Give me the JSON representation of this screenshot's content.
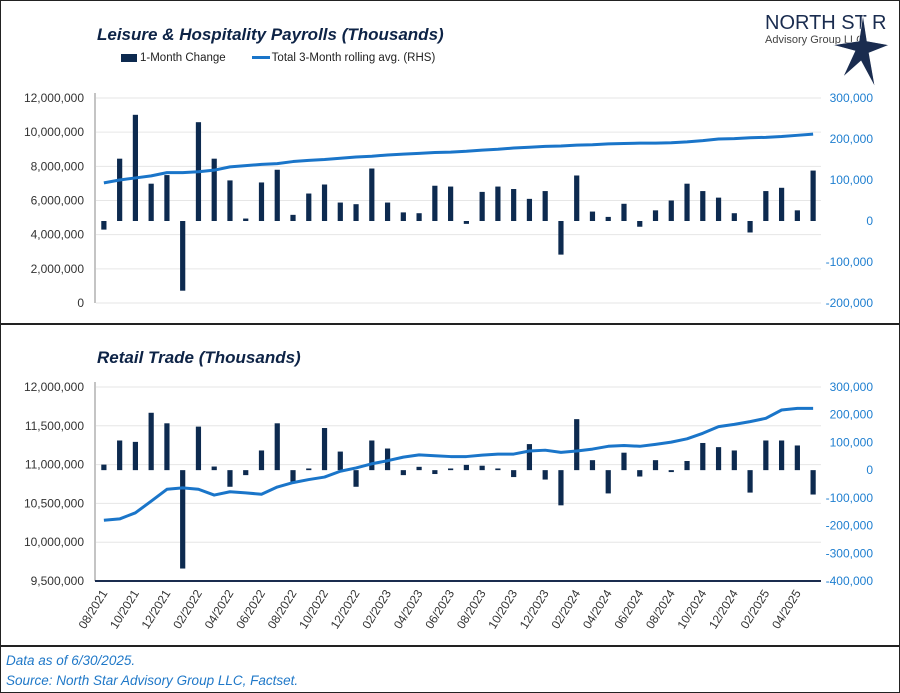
{
  "logo": {
    "line1": "NORTH STAR",
    "line2": "Advisory Group",
    "line3": "LLC"
  },
  "colors": {
    "bar": "#0d2a4f",
    "line": "#1a75c9",
    "rhs_text": "#1f7fd0",
    "grid": "#e6e6e6"
  },
  "x_labels": [
    "08/2021",
    "10/2021",
    "12/2021",
    "02/2022",
    "04/2022",
    "06/2022",
    "08/2022",
    "10/2022",
    "12/2022",
    "02/2023",
    "04/2023",
    "06/2023",
    "08/2023",
    "10/2023",
    "12/2023",
    "02/2024",
    "04/2024",
    "06/2024",
    "08/2024",
    "10/2024",
    "12/2024",
    "02/2025",
    "04/2025"
  ],
  "legend": {
    "bar": "1-Month Change",
    "line": "Total 3-Month rolling avg. (RHS)"
  },
  "chart_data": [
    {
      "type": "bar+line",
      "title": "Leisure & Hospitality Payrolls (Thousands)",
      "left_ticks": [
        "12,000,000",
        "10,000,000",
        "8,000,000",
        "6,000,000",
        "4,000,000",
        "2,000,000",
        "0"
      ],
      "right_ticks": [
        "300,000",
        "200,000",
        "100,000",
        "0",
        "-100,000",
        "-200,000"
      ],
      "rhs_range": [
        -200000,
        300000
      ],
      "grid": true,
      "legend_position": "top",
      "series": [
        {
          "name": "1-Month Change",
          "kind": "bar",
          "values": [
            -21000,
            152000,
            259000,
            91000,
            112000,
            -170000,
            241000,
            152000,
            99000,
            6000,
            94000,
            125000,
            15000,
            67000,
            89000,
            45000,
            41000,
            128000,
            45000,
            21000,
            19000,
            86000,
            84000,
            -7000,
            71000,
            84000,
            78000,
            54000,
            73000,
            -82000,
            111000,
            23000,
            10000,
            42000,
            -14000,
            26000,
            50000,
            91000,
            73000,
            57000,
            19000,
            -28000,
            73000,
            81000,
            26000,
            123000
          ]
        },
        {
          "name": "Total 3-Month rolling avg. (RHS)",
          "kind": "line",
          "values": [
            93000,
            100000,
            105000,
            110000,
            118000,
            118000,
            120000,
            124000,
            132000,
            135000,
            138000,
            140000,
            145000,
            148000,
            150000,
            153000,
            156000,
            158000,
            161000,
            163000,
            165000,
            167000,
            168000,
            170000,
            173000,
            175000,
            178000,
            180000,
            182000,
            183000,
            185000,
            186000,
            188000,
            189000,
            190000,
            190000,
            191000,
            193000,
            196000,
            200000,
            201000,
            203000,
            204000,
            206000,
            209000,
            212000
          ]
        }
      ]
    },
    {
      "type": "bar+line",
      "title": "Retail Trade (Thousands)",
      "left_ticks": [
        "12,000,000",
        "11,500,000",
        "11,000,000",
        "10,500,000",
        "10,000,000",
        "9,500,000"
      ],
      "right_ticks": [
        "300,000",
        "200,000",
        "100,000",
        "0",
        "-100,000",
        "-200,000",
        "-300,000",
        "-400,000"
      ],
      "rhs_range": [
        -400000,
        300000
      ],
      "grid": true,
      "series": [
        {
          "name": "1-Month Change",
          "kind": "bar",
          "values": [
            20000,
            107000,
            102000,
            207000,
            169000,
            -355000,
            157000,
            13000,
            -60000,
            -18000,
            71000,
            169000,
            -42000,
            6000,
            152000,
            67000,
            -60000,
            107000,
            78000,
            -18000,
            12000,
            -14000,
            6000,
            19000,
            16000,
            6000,
            -25000,
            94000,
            -34000,
            -127000,
            184000,
            36000,
            -84000,
            63000,
            -23000,
            36000,
            -7000,
            33000,
            98000,
            83000,
            71000,
            -81000,
            107000,
            107000,
            89000,
            -88000
          ]
        },
        {
          "name": "Total 3-Month rolling avg. (RHS)",
          "kind": "line",
          "values": [
            -181000,
            -176000,
            -154000,
            -112000,
            -69000,
            -64000,
            -69000,
            -90000,
            -78000,
            -82000,
            -87000,
            -61000,
            -45000,
            -34000,
            -25000,
            -4000,
            8000,
            23000,
            34000,
            47000,
            55000,
            52000,
            49000,
            49000,
            54000,
            58000,
            58000,
            69000,
            72000,
            64000,
            69000,
            76000,
            86000,
            89000,
            86000,
            93000,
            101000,
            113000,
            133000,
            157000,
            165000,
            175000,
            187000,
            217000,
            223000,
            223000
          ]
        }
      ]
    }
  ],
  "footer": {
    "note": "Data as of 6/30/2025.",
    "source": "Source: North Star Advisory Group LLC, Factset."
  }
}
